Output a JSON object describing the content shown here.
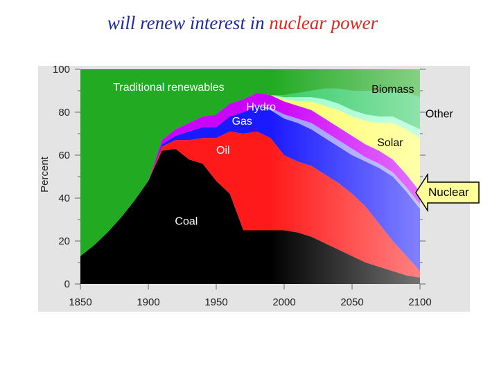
{
  "title": {
    "part1": "will renew interest in",
    "part2": "nuclear power",
    "color_part1": "#1f2a9c",
    "color_part2": "#d42a1f"
  },
  "callout": {
    "label": "Nuclear",
    "fill": "#ffff99"
  },
  "chart_data": {
    "type": "area",
    "stacked": true,
    "xlabel": "",
    "ylabel": "Percent",
    "xlim": [
      1850,
      2100
    ],
    "ylim": [
      0,
      100
    ],
    "x_ticks": [
      1850,
      1900,
      1950,
      2000,
      2050,
      2100
    ],
    "y_ticks": [
      0,
      20,
      40,
      60,
      80,
      100
    ],
    "grid": false,
    "projection_start": 1990,
    "x": [
      1850,
      1860,
      1870,
      1880,
      1890,
      1900,
      1910,
      1920,
      1930,
      1940,
      1950,
      1960,
      1970,
      1980,
      1990,
      2000,
      2010,
      2020,
      2030,
      2040,
      2050,
      2060,
      2070,
      2080,
      2090,
      2100
    ],
    "series": [
      {
        "name": "Coal",
        "color": "#000000",
        "values": [
          13,
          18,
          24,
          31,
          39,
          48,
          62,
          63,
          58,
          56,
          48,
          42,
          25,
          25,
          25,
          25,
          24,
          22,
          19,
          16,
          13,
          10,
          8,
          6,
          4,
          3
        ]
      },
      {
        "name": "Oil",
        "color": "#ff1a1a",
        "values": [
          0,
          0,
          0,
          0,
          0,
          0,
          2,
          4,
          9,
          12,
          20,
          29,
          45,
          46,
          43,
          35,
          33,
          33,
          32,
          31,
          29,
          26,
          20,
          14,
          9,
          3
        ]
      },
      {
        "name": "Gas",
        "color": "#1a1aff",
        "values": [
          0,
          0,
          0,
          0,
          0,
          0,
          1,
          2,
          4,
          5,
          5,
          7,
          10,
          12,
          13,
          17,
          18,
          17,
          17,
          17,
          18,
          21,
          26,
          30,
          30,
          29
        ]
      },
      {
        "name": "Nuclear",
        "color": "#9999ff",
        "values": [
          0,
          0,
          0,
          0,
          0,
          0,
          0,
          0,
          0,
          0,
          0,
          0,
          0,
          0,
          1,
          2,
          2,
          3,
          3,
          3,
          3,
          2,
          2,
          2,
          2,
          2
        ]
      },
      {
        "name": "Hydro",
        "color": "#cc00ff",
        "values": [
          0,
          0,
          0,
          0,
          0,
          0,
          2,
          3,
          4,
          5,
          6,
          6,
          6,
          6,
          6,
          6,
          6,
          6,
          6,
          6,
          6,
          6,
          6,
          6,
          6,
          6
        ]
      },
      {
        "name": "Solar",
        "color": "#ffff66",
        "values": [
          0,
          0,
          0,
          0,
          0,
          0,
          0,
          0,
          0,
          0,
          0,
          0,
          0,
          0,
          0,
          1,
          2,
          4,
          6,
          8,
          9,
          11,
          13,
          17,
          21,
          25
        ]
      },
      {
        "name": "Biomass",
        "color": "#99ffcc",
        "values": [
          0,
          0,
          0,
          0,
          0,
          0,
          0,
          0,
          0,
          0,
          0,
          0,
          0,
          0,
          0,
          1,
          2,
          2,
          3,
          3,
          3,
          3,
          3,
          3,
          3,
          4
        ]
      },
      {
        "name": "Other",
        "color": "#33cc66",
        "values": [
          0,
          0,
          0,
          0,
          0,
          0,
          0,
          0,
          0,
          0,
          0,
          0,
          0,
          0,
          0,
          1,
          2,
          3,
          5,
          7,
          9,
          11,
          12,
          12,
          14,
          15
        ]
      },
      {
        "name": "Traditional renewables",
        "color": "#22aa22",
        "values": [
          87,
          82,
          76,
          69,
          61,
          52,
          33,
          28,
          25,
          22,
          21,
          16,
          14,
          11,
          12,
          12,
          11,
          10,
          9,
          9,
          10,
          10,
          10,
          10,
          11,
          13
        ]
      }
    ]
  }
}
